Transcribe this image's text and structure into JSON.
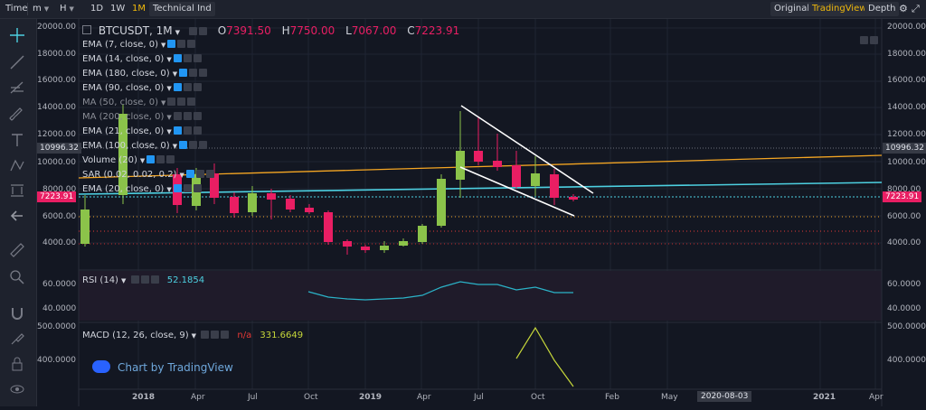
{
  "toolbar": {
    "time_label": "Time",
    "minute_label": "m",
    "hour_label": "H",
    "day_label": "1D",
    "week_label": "1W",
    "month_label": "1M",
    "indicators_label": "Technical Ind",
    "original_label": "Original",
    "tradingview_label": "TradingView",
    "depth_label": "Depth"
  },
  "symbol": {
    "name": "BTCUSDT, 1M",
    "open_prefix": "O",
    "open": "7391.50",
    "high_prefix": "H",
    "high": "7750.00",
    "low_prefix": "L",
    "low": "7067.00",
    "close_prefix": "C",
    "close": "7223.91"
  },
  "indicators": [
    "EMA (7, close, 0)",
    "EMA (14, close, 0)",
    "EMA (180, close, 0)",
    "EMA (90, close, 0)",
    "MA (50, close, 0)",
    "MA (200, close, 0)",
    "EMA (21, close, 0)",
    "EMA (100, close, 0)",
    "Volume (20)",
    "SAR (0.02, 0.02, 0.2)",
    "EMA (20, close, 0)"
  ],
  "price_axis": [
    "20000.00",
    "18000.00",
    "16000.00",
    "14000.00",
    "12000.00",
    "10000.00",
    "8000.00",
    "6000.00",
    "4000.00"
  ],
  "price_tags": {
    "upper": "10996.32",
    "current": "7223.91"
  },
  "rsi": {
    "label": "RSI (14)",
    "value": "52.1854",
    "ticks": [
      "60.0000",
      "40.0000"
    ]
  },
  "macd": {
    "label": "MACD (12, 26, close, 9)",
    "na": "n/a",
    "value": "331.6649",
    "ticks": [
      "500.0000",
      "400.0000"
    ]
  },
  "time_axis": [
    "2018",
    "Apr",
    "Jul",
    "Oct",
    "2019",
    "Apr",
    "Jul",
    "Oct",
    "Feb",
    "May",
    "2020-08-03",
    "2021",
    "Apr"
  ],
  "watermark": "Chart by TradingView",
  "colors": {
    "up": "#8bc34a",
    "down": "#e91e63",
    "ema_orange": "#f5a623",
    "ema_cyan": "#4dd0e1",
    "accent": "#f0b90b"
  }
}
